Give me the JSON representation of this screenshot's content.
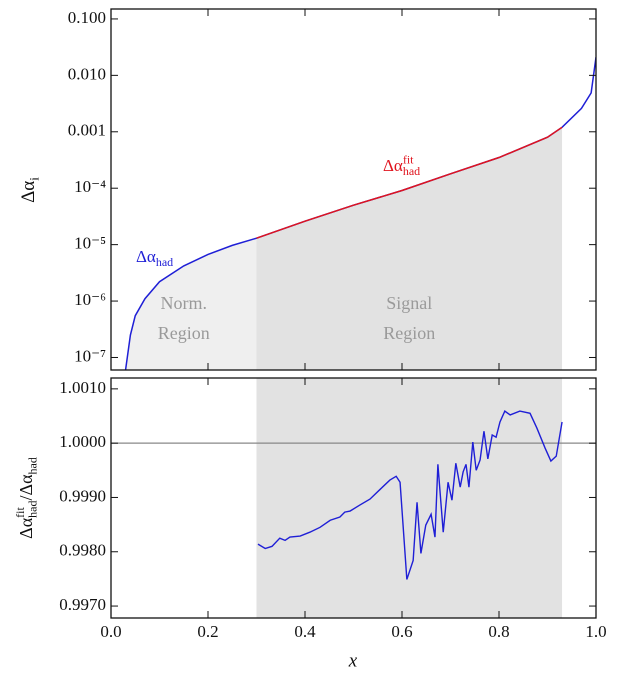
{
  "chart_data": [
    {
      "type": "line",
      "log_y": true,
      "y_label": [
        {
          "text": "Δα"
        },
        {
          "text": "i",
          "pos": "sub"
        }
      ],
      "xlim": [
        0,
        1
      ],
      "ylim": [
        6e-08,
        0.15
      ],
      "yticks": [
        {
          "value": 0.1,
          "label": "0.100"
        },
        {
          "value": 0.01,
          "label": "0.010"
        },
        {
          "value": 0.001,
          "label": "0.001"
        },
        {
          "value": 0.0001,
          "label": "10⁻⁴"
        },
        {
          "value": 1e-05,
          "label": "10⁻⁵"
        },
        {
          "value": 1e-06,
          "label": "10⁻⁶"
        },
        {
          "value": 1e-07,
          "label": "10⁻⁷"
        }
      ],
      "series": [
        {
          "name": [
            {
              "text": "Δα"
            },
            {
              "text": "had",
              "pos": "sub"
            }
          ],
          "color": "#1f1fd6",
          "x": [
            0.03,
            0.04,
            0.05,
            0.07,
            0.1,
            0.15,
            0.2,
            0.25,
            0.3,
            0.4,
            0.5,
            0.6,
            0.7,
            0.8,
            0.9,
            0.93,
            0.97,
            0.99,
            1.0
          ],
          "values": [
            6e-08,
            2.5e-07,
            5.5e-07,
            1.1e-06,
            2.2e-06,
            4.2e-06,
            6.7e-06,
            9.7e-06,
            1.3e-05,
            2.6e-05,
            5e-05,
            9.1e-05,
            0.00018,
            0.00035,
            0.0008,
            0.0012,
            0.0026,
            0.0049,
            0.021
          ]
        },
        {
          "name": [
            {
              "text": "Δα"
            },
            {
              "text": "fit",
              "pos": "sup"
            },
            {
              "text": "had",
              "pos": "sub"
            }
          ],
          "color": "#e0141e",
          "x": [
            0.3,
            0.4,
            0.5,
            0.6,
            0.7,
            0.8,
            0.9,
            0.93
          ],
          "values": [
            1.3e-05,
            2.6e-05,
            5e-05,
            9.1e-05,
            0.00018,
            0.00035,
            0.0008,
            0.0012
          ]
        }
      ],
      "regions": [
        {
          "label": [
            "Norm.",
            "Region"
          ],
          "x": [
            0,
            0.3
          ],
          "color": "#efefef"
        },
        {
          "label": [
            "Signal",
            "Region"
          ],
          "x": [
            0.3,
            0.93
          ],
          "color": "#e2e2e2"
        }
      ]
    },
    {
      "type": "line",
      "y_label": [
        {
          "text": "Δα"
        },
        {
          "text": "fit",
          "pos": "sup"
        },
        {
          "text": "had",
          "pos": "sub"
        },
        {
          "text": "/Δα"
        },
        {
          "text": "had",
          "pos": "sub"
        }
      ],
      "x_label": "x",
      "xlim": [
        0,
        1
      ],
      "xticks": [
        {
          "value": 0,
          "label": "0.0"
        },
        0.2,
        0.4,
        0.6,
        0.8,
        {
          "value": 1,
          "label": "1.0"
        }
      ],
      "ylim": [
        0.99678,
        1.0012
      ],
      "yticks": [
        {
          "value": 0.997,
          "label": "0.9970"
        },
        {
          "value": 0.998,
          "label": "0.9980"
        },
        {
          "value": 0.999,
          "label": "0.9990"
        },
        {
          "value": 1,
          "label": "1.0000"
        },
        {
          "value": 1.001,
          "label": "1.0010"
        }
      ],
      "reference_line": 1,
      "region": {
        "x": [
          0.3,
          0.93
        ],
        "color": "#e2e2e2"
      },
      "series": [
        {
          "color": "#1f1fd6",
          "x": [
            0.303,
            0.318,
            0.332,
            0.348,
            0.359,
            0.369,
            0.39,
            0.41,
            0.431,
            0.452,
            0.472,
            0.482,
            0.493,
            0.513,
            0.534,
            0.555,
            0.575,
            0.588,
            0.596,
            0.61,
            0.623,
            0.631,
            0.639,
            0.649,
            0.66,
            0.668,
            0.674,
            0.685,
            0.695,
            0.703,
            0.711,
            0.72,
            0.726,
            0.732,
            0.738,
            0.746,
            0.753,
            0.761,
            0.769,
            0.777,
            0.786,
            0.794,
            0.802,
            0.812,
            0.823,
            0.843,
            0.864,
            0.878,
            0.895,
            0.907,
            0.918,
            0.93
          ],
          "values": [
            0.99814,
            0.99806,
            0.9981,
            0.99825,
            0.99821,
            0.99827,
            0.99829,
            0.99836,
            0.99845,
            0.99858,
            0.99864,
            0.99873,
            0.99875,
            0.99886,
            0.99897,
            0.99915,
            0.99932,
            0.99939,
            0.99928,
            0.99749,
            0.99784,
            0.99891,
            0.99797,
            0.99849,
            0.99869,
            0.99827,
            0.99961,
            0.99836,
            0.99928,
            0.99895,
            0.99963,
            0.99919,
            0.99947,
            0.99961,
            0.99919,
            1.00002,
            0.9995,
            0.99969,
            1.00022,
            0.99971,
            1.00015,
            1.00011,
            1.00039,
            1.00059,
            1.00052,
            1.00059,
            1.00055,
            1.00028,
            0.99991,
            0.99967,
            0.99976,
            1.00039
          ]
        }
      ]
    }
  ]
}
